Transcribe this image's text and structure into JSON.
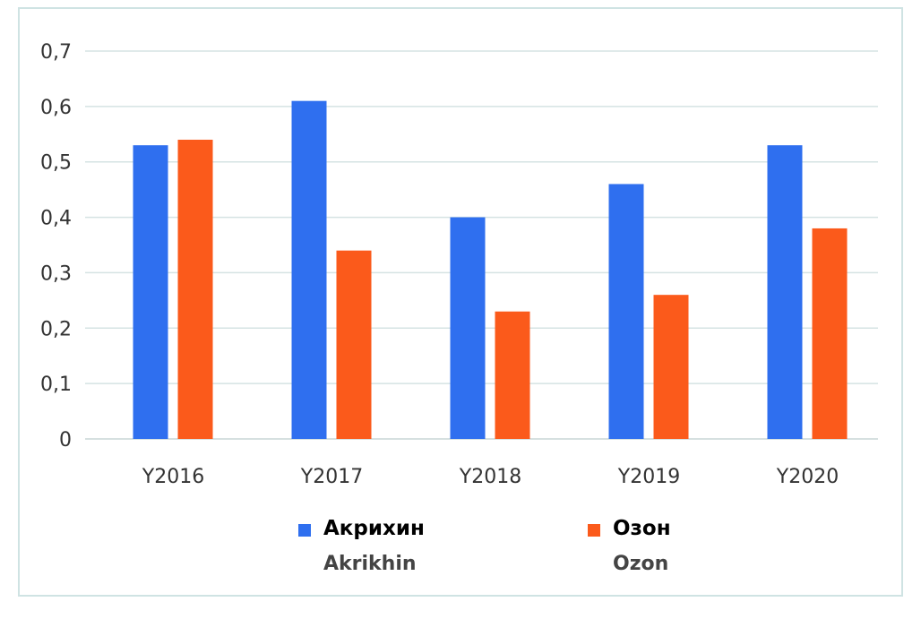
{
  "chart_data": {
    "type": "bar",
    "title": "",
    "xlabel": "",
    "ylabel": "",
    "categories": [
      "Y2016",
      "Y2017",
      "Y2018",
      "Y2019",
      "Y2020"
    ],
    "series": [
      {
        "name": "Акрихин",
        "name_en": "Akrikhin",
        "color": "#2f6fef",
        "values": [
          0.53,
          0.61,
          0.4,
          0.46,
          0.53
        ]
      },
      {
        "name": "Озон",
        "name_en": "Ozon",
        "color": "#fb5a1b",
        "values": [
          0.54,
          0.34,
          0.23,
          0.26,
          0.38
        ]
      }
    ],
    "ylim": [
      0,
      0.7
    ],
    "yticks": [
      "0",
      "0,1",
      "0,2",
      "0,3",
      "0,4",
      "0,5",
      "0,6",
      "0,7"
    ],
    "grid": true,
    "legend_position": "bottom"
  }
}
